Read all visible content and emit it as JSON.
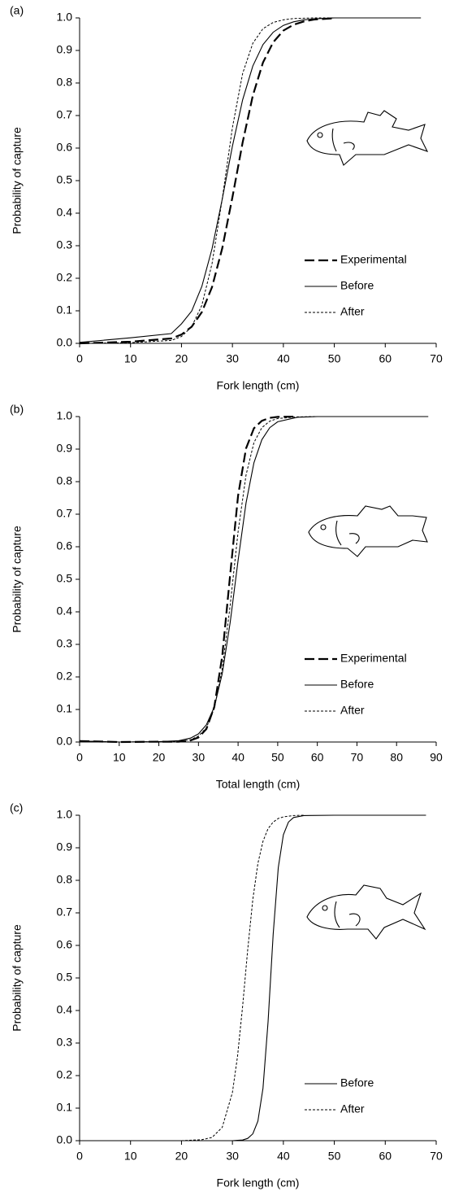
{
  "chart_data": [
    {
      "type": "line",
      "panel_label": "(a)",
      "x_label": "Fork length (cm)",
      "y_label": "Probability of capture",
      "x": [
        0,
        10,
        18,
        20,
        22,
        24,
        26,
        28,
        30,
        32,
        34,
        36,
        38,
        40,
        42,
        44,
        46,
        50,
        60,
        67
      ],
      "series": [
        {
          "name": "Experimental",
          "color": "#000000",
          "line_style": "long-dash",
          "values": [
            0.0,
            0.005,
            0.015,
            0.027,
            0.051,
            0.096,
            0.173,
            0.292,
            0.449,
            0.617,
            0.761,
            0.863,
            0.925,
            0.961,
            0.979,
            0.989,
            0.995,
            0.999,
            null,
            null
          ]
        },
        {
          "name": "Before",
          "color": "#000000",
          "line_style": "solid",
          "values": [
            0.003,
            0.017,
            0.03,
            0.06,
            0.099,
            0.175,
            0.291,
            0.443,
            0.606,
            0.748,
            0.852,
            0.918,
            0.956,
            0.977,
            0.988,
            0.994,
            0.997,
            1.0,
            1.0,
            1.0
          ]
        },
        {
          "name": "After",
          "color": "#000000",
          "line_style": "short-dash",
          "values": [
            0.0,
            0.002,
            0.009,
            0.021,
            0.051,
            0.117,
            0.245,
            0.444,
            0.663,
            0.829,
            0.922,
            0.967,
            0.986,
            0.994,
            0.998,
            0.999,
            1.0,
            1.0,
            null,
            null
          ]
        }
      ],
      "xlim": [
        0,
        70
      ],
      "xticks": [
        0,
        10,
        20,
        30,
        40,
        50,
        60,
        70
      ],
      "ylim": [
        0,
        1
      ],
      "yticks": [
        {
          "value": 0,
          "label": "0.0"
        },
        0.1,
        0.2,
        0.3,
        0.4,
        0.5,
        0.6,
        0.7,
        0.8,
        0.9,
        {
          "value": 1,
          "label": "1.0"
        }
      ],
      "legend": "lower right"
    },
    {
      "type": "line",
      "panel_label": "(b)",
      "x_label": "Total length (cm)",
      "y_label": "Probability of capture",
      "x": [
        0,
        10,
        20,
        25,
        28,
        30,
        32,
        34,
        36,
        38,
        40,
        42,
        44,
        46,
        48,
        50,
        55,
        60,
        70,
        88
      ],
      "series": [
        {
          "name": "Experimental",
          "color": "#000000",
          "line_style": "long-dash",
          "values": [
            0.003,
            0.0,
            0.001,
            0.001,
            0.005,
            0.014,
            0.04,
            0.108,
            0.264,
            0.514,
            0.757,
            0.902,
            0.964,
            0.987,
            0.996,
            0.999,
            1.0,
            null,
            null,
            null
          ]
        },
        {
          "name": "Before",
          "color": "#000000",
          "line_style": "solid",
          "values": [
            0.003,
            0.0,
            0.001,
            0.004,
            0.012,
            0.025,
            0.053,
            0.108,
            0.21,
            0.367,
            0.558,
            0.734,
            0.858,
            0.929,
            0.966,
            0.984,
            0.998,
            1.0,
            1.0,
            1.0
          ]
        },
        {
          "name": "After",
          "color": "#000000",
          "line_style": "short-dash",
          "values": [
            0.003,
            0.0,
            0.001,
            0.002,
            0.007,
            0.018,
            0.044,
            0.103,
            0.224,
            0.42,
            0.646,
            0.82,
            0.92,
            0.966,
            0.986,
            0.994,
            0.999,
            1.0,
            null,
            null
          ]
        }
      ],
      "xlim": [
        0,
        90
      ],
      "xticks": [
        0,
        10,
        20,
        30,
        40,
        50,
        60,
        70,
        80,
        90
      ],
      "ylim": [
        0,
        1
      ],
      "yticks": [
        {
          "value": 0,
          "label": "0.0"
        },
        0.1,
        0.2,
        0.3,
        0.4,
        0.5,
        0.6,
        0.7,
        0.8,
        0.9,
        {
          "value": 1,
          "label": "1.0"
        }
      ],
      "legend": "lower right"
    },
    {
      "type": "line",
      "panel_label": "(c)",
      "x_label": "Fork length (cm)",
      "y_label": "Probability of capture",
      "x": [
        0,
        20,
        24,
        26,
        28,
        30,
        31,
        32,
        33,
        34,
        35,
        36,
        37,
        38,
        39,
        40,
        41,
        42,
        44,
        50,
        68
      ],
      "series": [
        {
          "name": "Before",
          "color": "#000000",
          "line_style": "solid",
          "values": [
            0.0,
            0.0,
            0.0,
            0.0,
            0.0,
            0.0,
            0.001,
            0.002,
            0.007,
            0.021,
            0.06,
            0.161,
            0.366,
            0.634,
            0.839,
            0.94,
            0.979,
            0.993,
            0.999,
            1.0,
            1.0
          ]
        },
        {
          "name": "After",
          "color": "#000000",
          "line_style": "short-dash",
          "values": [
            0.0,
            0.0,
            0.003,
            0.01,
            0.041,
            0.148,
            0.259,
            0.413,
            0.587,
            0.741,
            0.852,
            0.92,
            0.959,
            0.979,
            0.99,
            0.995,
            0.997,
            0.999,
            1.0,
            null,
            null
          ]
        }
      ],
      "xlim": [
        0,
        70
      ],
      "xticks": [
        0,
        10,
        20,
        30,
        40,
        50,
        60,
        70
      ],
      "ylim": [
        0,
        1
      ],
      "yticks": [
        {
          "value": 0,
          "label": "0.0"
        },
        0.1,
        0.2,
        0.3,
        0.4,
        0.5,
        0.6,
        0.7,
        0.8,
        0.9,
        {
          "value": 1,
          "label": "1.0"
        }
      ],
      "legend": "lower right"
    }
  ]
}
